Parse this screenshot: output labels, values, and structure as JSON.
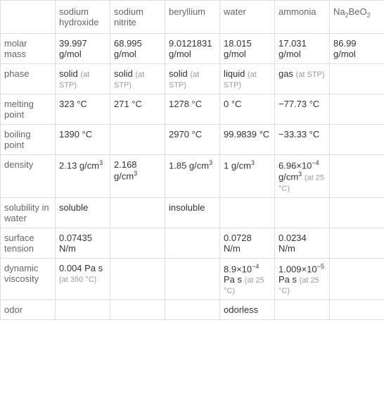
{
  "headers": {
    "empty": "",
    "col1": "sodium hydroxide",
    "col2": "sodium nitrite",
    "col3": "beryllium",
    "col4": "water",
    "col5": "ammonia",
    "col6_prefix": "Na",
    "col6_sub1": "2",
    "col6_mid": "BeO",
    "col6_sub2": "2"
  },
  "rows": {
    "molar_mass": {
      "label": "molar mass",
      "c1": "39.997 g/mol",
      "c2": "68.995 g/mol",
      "c3": "9.0121831 g/mol",
      "c4": "18.015 g/mol",
      "c5": "17.031 g/mol",
      "c6": "86.99 g/mol"
    },
    "phase": {
      "label": "phase",
      "c1": "solid",
      "c1_note": "(at STP)",
      "c2": "solid",
      "c2_note": "(at STP)",
      "c3": "solid",
      "c3_note": "(at STP)",
      "c4": "liquid",
      "c4_note": "(at STP)",
      "c5": "gas",
      "c5_note": "(at STP)",
      "c6": ""
    },
    "melting": {
      "label": "melting point",
      "c1": "323 °C",
      "c2": "271 °C",
      "c3": "1278 °C",
      "c4": "0 °C",
      "c5": "−77.73 °C",
      "c6": ""
    },
    "boiling": {
      "label": "boiling point",
      "c1": "1390 °C",
      "c2": "",
      "c3": "2970 °C",
      "c4": "99.9839 °C",
      "c5": "−33.33 °C",
      "c6": ""
    },
    "density": {
      "label": "density",
      "c1_val": "2.13 g/cm",
      "c1_sup": "3",
      "c2_val": "2.168 g/cm",
      "c2_sup": "3",
      "c3_val": "1.85 g/cm",
      "c3_sup": "3",
      "c4_val": "1 g/cm",
      "c4_sup": "3",
      "c5_pre": "6.96×10",
      "c5_sup1": "−4",
      "c5_mid": " g/cm",
      "c5_sup2": "3",
      "c5_note": "(at 25 °C)",
      "c6": ""
    },
    "solubility": {
      "label": "solubility in water",
      "c1": "soluble",
      "c2": "",
      "c3": "insoluble",
      "c4": "",
      "c5": "",
      "c6": ""
    },
    "surface": {
      "label": "surface tension",
      "c1": "0.07435 N/m",
      "c2": "",
      "c3": "",
      "c4": "0.0728 N/m",
      "c5": "0.0234 N/m",
      "c6": ""
    },
    "viscosity": {
      "label": "dynamic viscosity",
      "c1": "0.004 Pa s",
      "c1_note": "(at 350 °C)",
      "c2": "",
      "c3": "",
      "c4_pre": "8.9×10",
      "c4_sup": "−4",
      "c4_post": " Pa s",
      "c4_note": "(at 25 °C)",
      "c5_pre": "1.009×10",
      "c5_sup": "−5",
      "c5_post": " Pa s",
      "c5_note": "(at 25 °C)",
      "c6": ""
    },
    "odor": {
      "label": "odor",
      "c1": "",
      "c2": "",
      "c3": "",
      "c4": "odorless",
      "c5": "",
      "c6": ""
    }
  }
}
